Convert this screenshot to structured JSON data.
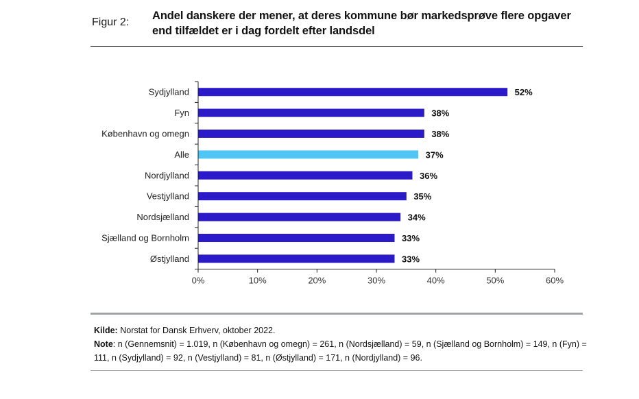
{
  "figure": {
    "label": "Figur 2:",
    "title": "Andel danskere der mener, at deres kommune bør markedsprøve flere opgaver end tilfældet er i dag fordelt efter landsdel"
  },
  "chart_data": {
    "type": "bar",
    "orientation": "horizontal",
    "title": "Andel danskere der mener, at deres kommune bør markedsprøve flere opgaver end tilfældet er i dag fordelt efter landsdel",
    "xlabel": "",
    "ylabel": "",
    "categories": [
      "Sydjylland",
      "Fyn",
      "København og omegn",
      "Alle",
      "Nordjylland",
      "Vestjylland",
      "Nordsjælland",
      "Sjælland og Bornholm",
      "Østjylland"
    ],
    "values": [
      52,
      38,
      38,
      37,
      36,
      35,
      34,
      33,
      33
    ],
    "value_labels": [
      "52%",
      "38%",
      "38%",
      "37%",
      "36%",
      "35%",
      "34%",
      "33%",
      "33%"
    ],
    "highlight_category": "Alle",
    "colors": {
      "default": "#2b1ac8",
      "highlight": "#4fc6f5"
    },
    "xlim": [
      0,
      60
    ],
    "xticks": [
      0,
      10,
      20,
      30,
      40,
      50,
      60
    ],
    "xtick_labels": [
      "0%",
      "10%",
      "20%",
      "30%",
      "40%",
      "50%",
      "60%"
    ],
    "grid": false,
    "legend": "none"
  },
  "footer": {
    "source_label": "Kilde:",
    "source_text": "Norstat for Dansk Erhverv, oktober 2022.",
    "note_label": "Note",
    "note_text": ": n (Gennemsnit) = 1.019, n (København og omegn) = 261, n (Nordsjælland) = 59, n (Sjælland og Bornholm) = 149, n (Fyn) = 111, n (Sydjylland) = 92, n (Vestjylland) = 81, n (Østjylland) = 171, n (Nordjylland) = 96."
  }
}
